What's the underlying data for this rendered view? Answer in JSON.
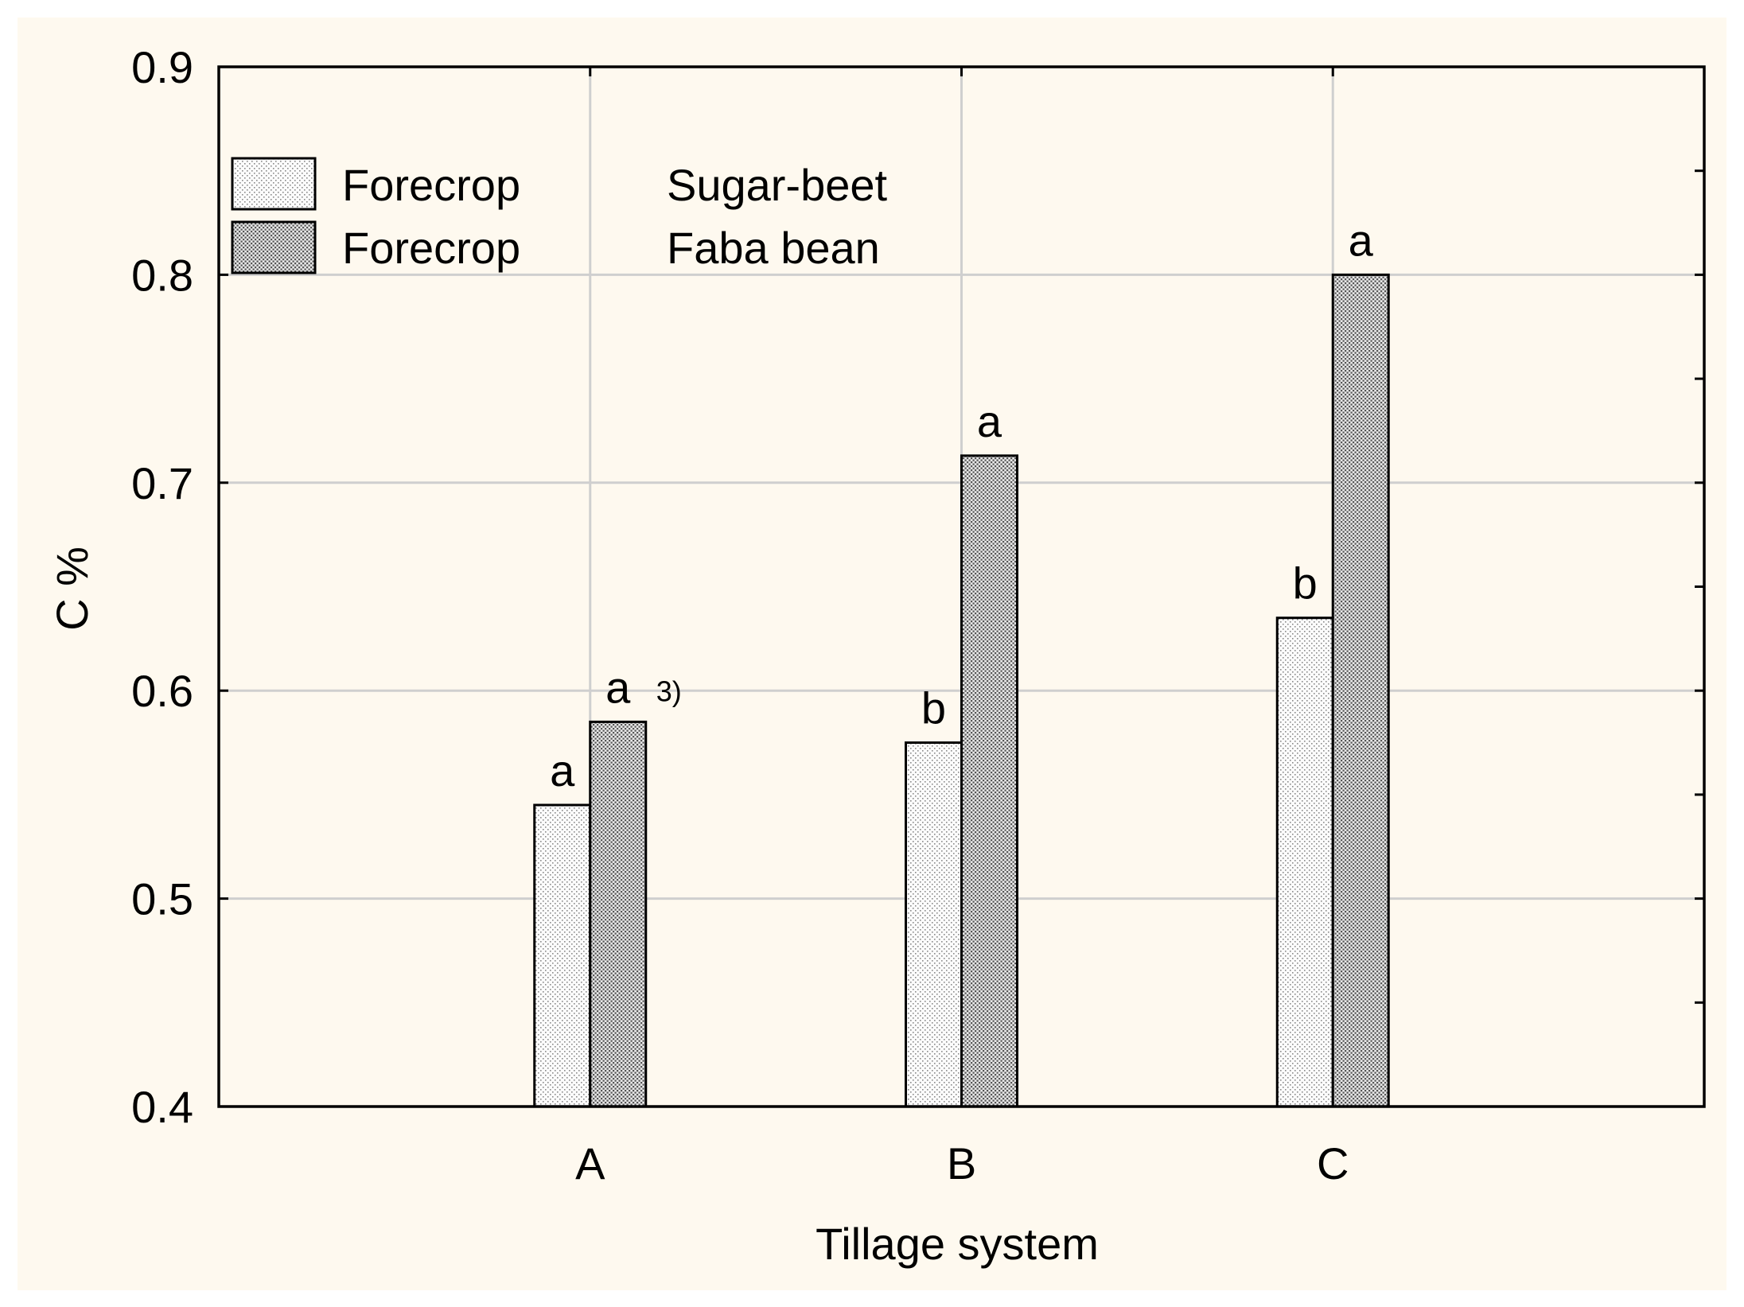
{
  "chart_data": {
    "type": "bar",
    "title": "",
    "xlabel": "Tillage system",
    "ylabel": "C %",
    "ylim": [
      0.4,
      0.9
    ],
    "yticks": [
      0.4,
      0.5,
      0.6,
      0.7,
      0.8,
      0.9
    ],
    "ytick_labels": [
      "0.4",
      "0.5",
      "0.6",
      "0.7",
      "0.8",
      "0.9"
    ],
    "grid": true,
    "legend_position": "top-left",
    "categories": [
      "A",
      "B",
      "C"
    ],
    "series": [
      {
        "name": "Sugar-beet",
        "legend_prefix": "Forecrop",
        "values": [
          0.545,
          0.575,
          0.635
        ],
        "labels": [
          "a",
          "b",
          "b"
        ],
        "color": "#f4f4f4"
      },
      {
        "name": "Faba bean",
        "legend_prefix": "Forecrop",
        "values": [
          0.585,
          0.713,
          0.8
        ],
        "labels": [
          "a",
          "a",
          "a"
        ],
        "color": "#d9d9d9"
      }
    ],
    "annotations": [
      {
        "text": "3)",
        "attached_to": "A / Faba bean label"
      }
    ]
  }
}
